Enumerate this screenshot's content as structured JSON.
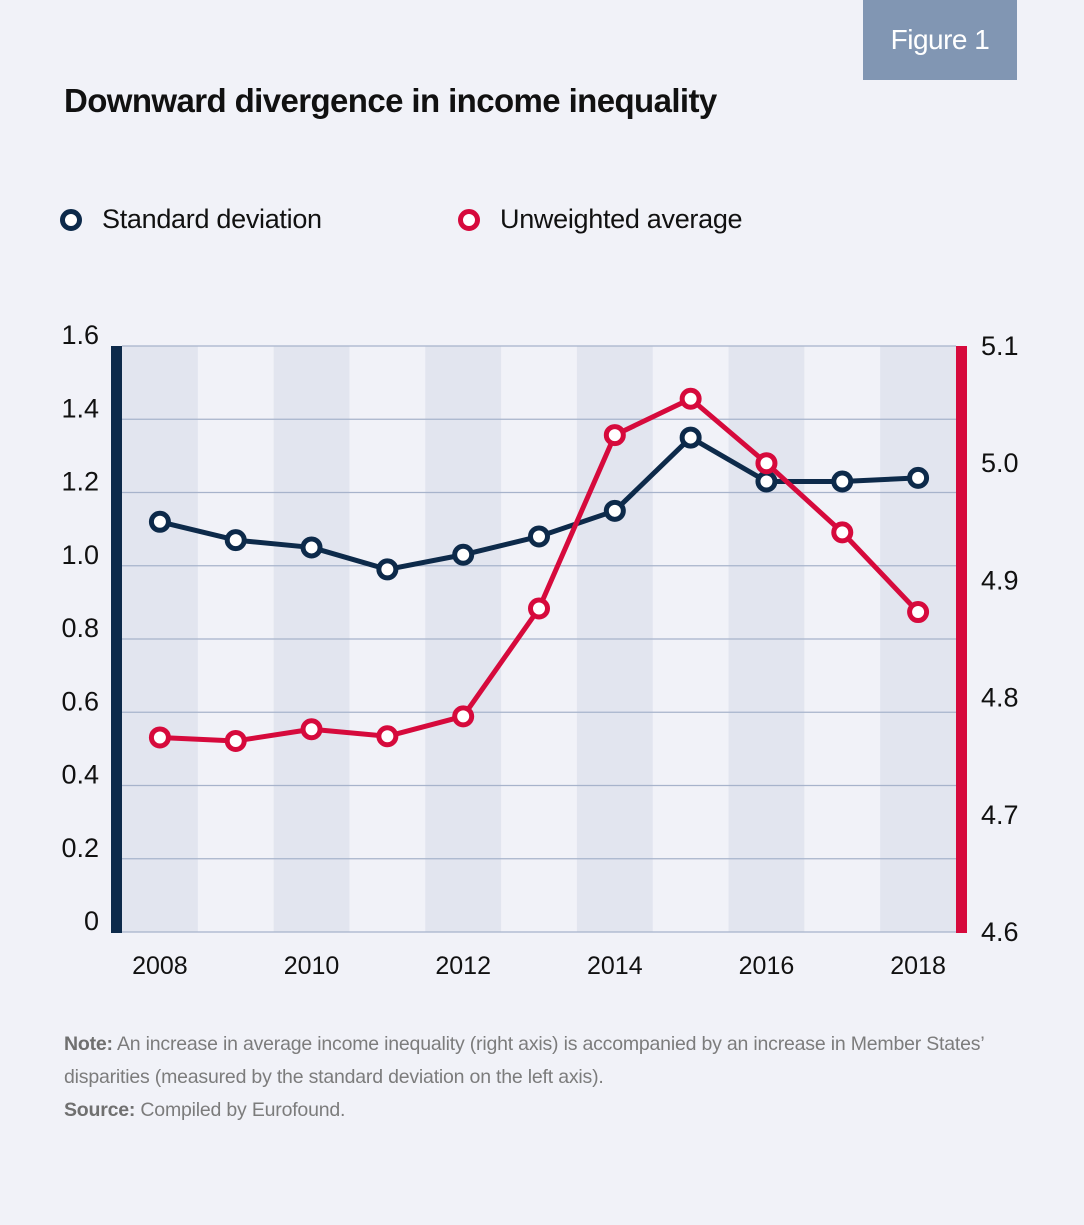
{
  "figure_label": "Figure 1",
  "title": "Downward divergence in income inequality",
  "legend": [
    {
      "label": "Standard deviation",
      "color": "#0d2a4a"
    },
    {
      "label": "Unweighted average",
      "color": "#d60a3c"
    }
  ],
  "note": {
    "note_label": "Note:",
    "note_text": " An increase in average income inequality (right axis) is accompanied by an increase in Member States’ disparities (measured by the standard deviation on the left axis).",
    "source_label": "Source:",
    "source_text": " Compiled by Eurofound."
  },
  "colors": {
    "background": "#f1f2f8",
    "stripe": "#e2e5ef",
    "gridline": "#a7b3cb",
    "left_axis": "#0d2a4a",
    "right_axis": "#d60a3c",
    "badge": "#8196b3"
  },
  "chart_data": {
    "type": "line",
    "title": "Downward divergence in income inequality",
    "x": [
      2008,
      2009,
      2010,
      2011,
      2012,
      2013,
      2014,
      2015,
      2016,
      2017,
      2018
    ],
    "x_tick_labels": [
      "2008",
      "2010",
      "2012",
      "2014",
      "2016",
      "2018"
    ],
    "xlabel": "",
    "grid": true,
    "legend_position": "top-left",
    "y_left": {
      "label": "Standard deviation",
      "ylim": [
        0,
        1.6
      ],
      "ticks": [
        "0",
        "0.2",
        "0.4",
        "0.6",
        "0.8",
        "1.0",
        "1.2",
        "1.4",
        "1.6"
      ]
    },
    "y_right": {
      "label": "Unweighted average",
      "ylim": [
        4.6,
        5.1
      ],
      "ticks": [
        "4.6",
        "4.7",
        "4.8",
        "4.9",
        "5.0",
        "5.1"
      ]
    },
    "series": [
      {
        "name": "Standard deviation",
        "axis": "left",
        "color": "#0d2a4a",
        "values": [
          1.12,
          1.07,
          1.05,
          0.99,
          1.03,
          1.08,
          1.15,
          1.35,
          1.23,
          1.23,
          1.24
        ]
      },
      {
        "name": "Unweighted average",
        "axis": "right",
        "color": "#d60a3c",
        "values": [
          4.766,
          4.763,
          4.773,
          4.767,
          4.784,
          4.876,
          5.024,
          5.055,
          5.0,
          4.941,
          4.873
        ]
      }
    ]
  }
}
